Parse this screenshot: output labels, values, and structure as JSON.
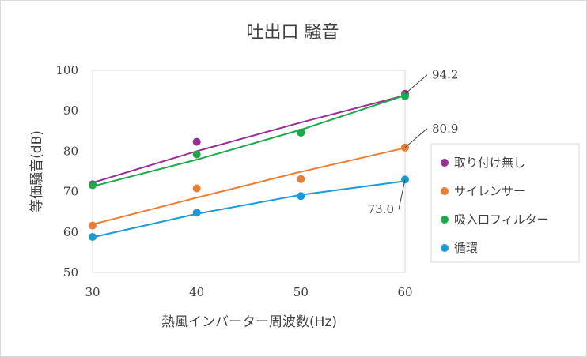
{
  "chart_data": {
    "type": "scatter",
    "title": "吐出口 騒音",
    "xlabel": "熱風インバーター周波数(Hz)",
    "ylabel": "等価騒音(dB)",
    "xlim": [
      30,
      60
    ],
    "ylim": [
      50,
      100
    ],
    "xticks": [
      "30",
      "40",
      "50",
      "60"
    ],
    "yticks": [
      "50",
      "60",
      "70",
      "80",
      "90",
      "100"
    ],
    "grid": false,
    "legend_position": "right",
    "series": [
      {
        "name": "取り付け無し",
        "color": "#9b2d94",
        "x": [
          30,
          40,
          50,
          60
        ],
        "y": [
          71.8,
          82.3,
          84.6,
          94.2
        ],
        "trend": [
          72.2,
          80.0,
          87.1,
          93.8
        ]
      },
      {
        "name": "サイレンサー",
        "color": "#ed7d31",
        "x": [
          30,
          40,
          50,
          60
        ],
        "y": [
          61.6,
          70.8,
          73.1,
          80.9
        ],
        "trend": [
          61.9,
          68.5,
          74.9,
          80.8
        ]
      },
      {
        "name": "吸入口フィルター",
        "color": "#1aaa4a",
        "x": [
          30,
          40,
          50,
          60
        ],
        "y": [
          71.6,
          79.2,
          84.6,
          93.6
        ],
        "trend": [
          71.3,
          77.9,
          85.3,
          93.8
        ]
      },
      {
        "name": "循環",
        "color": "#1b9bd7",
        "x": [
          30,
          40,
          50,
          60
        ],
        "y": [
          58.8,
          64.8,
          68.9,
          73.0
        ],
        "trend": [
          58.7,
          64.5,
          69.2,
          72.6
        ]
      }
    ],
    "annotations": [
      {
        "text": "94.2",
        "series": 0,
        "point": 3
      },
      {
        "text": "80.9",
        "series": 1,
        "point": 3
      },
      {
        "text": "73.0",
        "series": 3,
        "point": 3
      }
    ]
  }
}
